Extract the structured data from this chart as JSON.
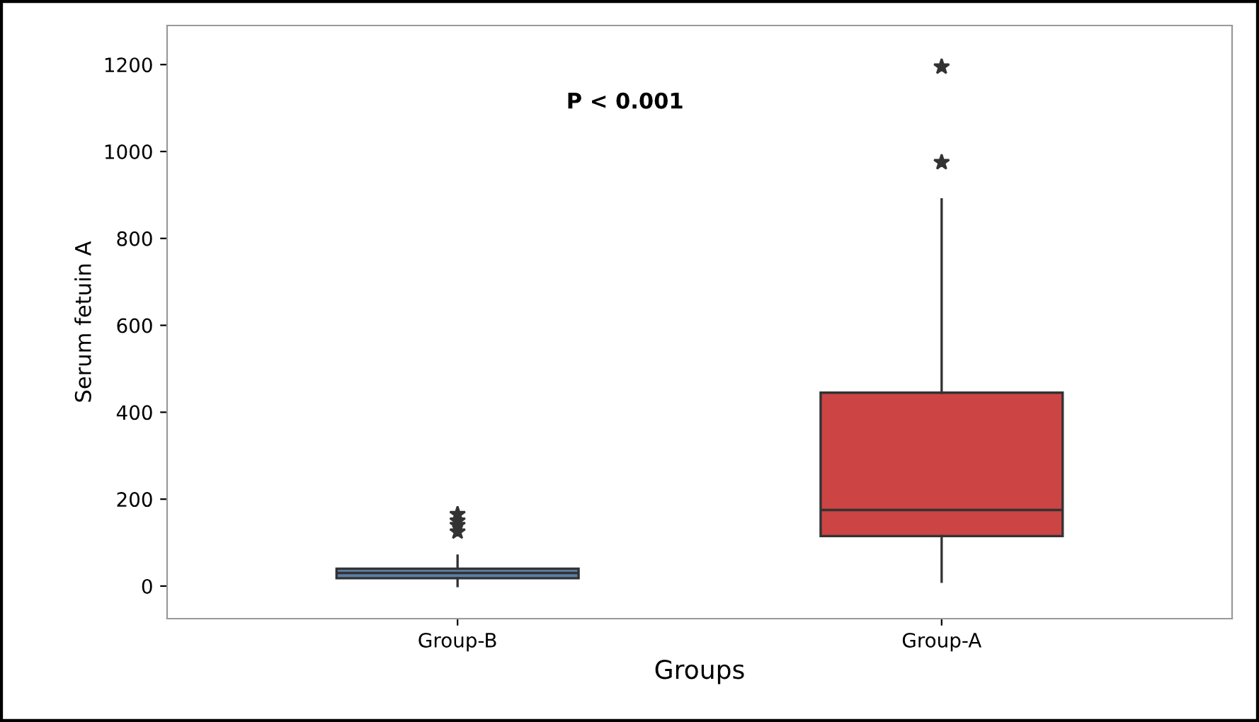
{
  "chart_data": {
    "type": "box",
    "xlabel": "Groups",
    "ylabel": "Serum fetuin A",
    "categories": [
      "Group-B",
      "Group-A"
    ],
    "boxes": [
      {
        "low": 0,
        "q1": 18,
        "median": 30,
        "q3": 40,
        "high": 70,
        "outliers": [
          165,
          150,
          140,
          125
        ]
      },
      {
        "low": 10,
        "q1": 115,
        "median": 175,
        "q3": 445,
        "high": 890,
        "outliers": [
          975,
          1195
        ]
      }
    ],
    "colors": [
      "#5b7fa6",
      "#cc4444"
    ],
    "ylim": [
      -75,
      1290
    ],
    "yticks": [
      0,
      200,
      400,
      600,
      800,
      1000,
      1200
    ],
    "annotations": [
      "P < 0.001"
    ],
    "marker": "star",
    "grid": false,
    "legend": false
  }
}
